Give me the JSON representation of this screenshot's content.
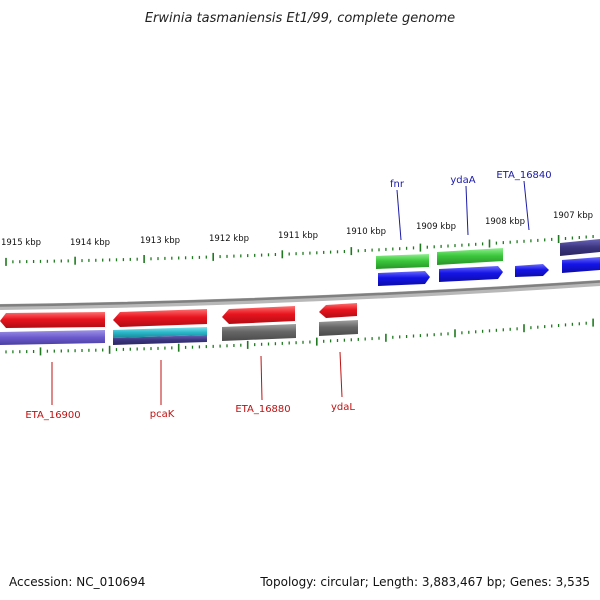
{
  "title": "Erwinia tasmaniensis Et1/99, complete genome",
  "footer": {
    "accession": "Accession: NC_010694",
    "summary": "Topology: circular; Length: 3,883,467 bp; Genes: 3,535"
  },
  "tick_labels": [
    "1915 kbp",
    "1914 kbp",
    "1913 kbp",
    "1912 kbp",
    "1911 kbp",
    "1910 kbp",
    "1909 kbp",
    "1908 kbp",
    "1907 kbp"
  ],
  "gene_labels_top": [
    "fnr",
    "ydaA",
    "ETA_16840"
  ],
  "gene_labels_bottom": [
    "ETA_16900",
    "pcaK",
    "ETA_16880",
    "ydaL"
  ],
  "colors": {
    "backbone": "#8a8a8a",
    "tick": "#1f7a1f",
    "gene_red": "#e8141e",
    "gene_blue": "#1414e6",
    "gene_green": "#3cc83c",
    "gene_gray": "#6e6e6e",
    "gene_purple": "#6a5acd",
    "gene_cyan": "#29b6c8"
  }
}
